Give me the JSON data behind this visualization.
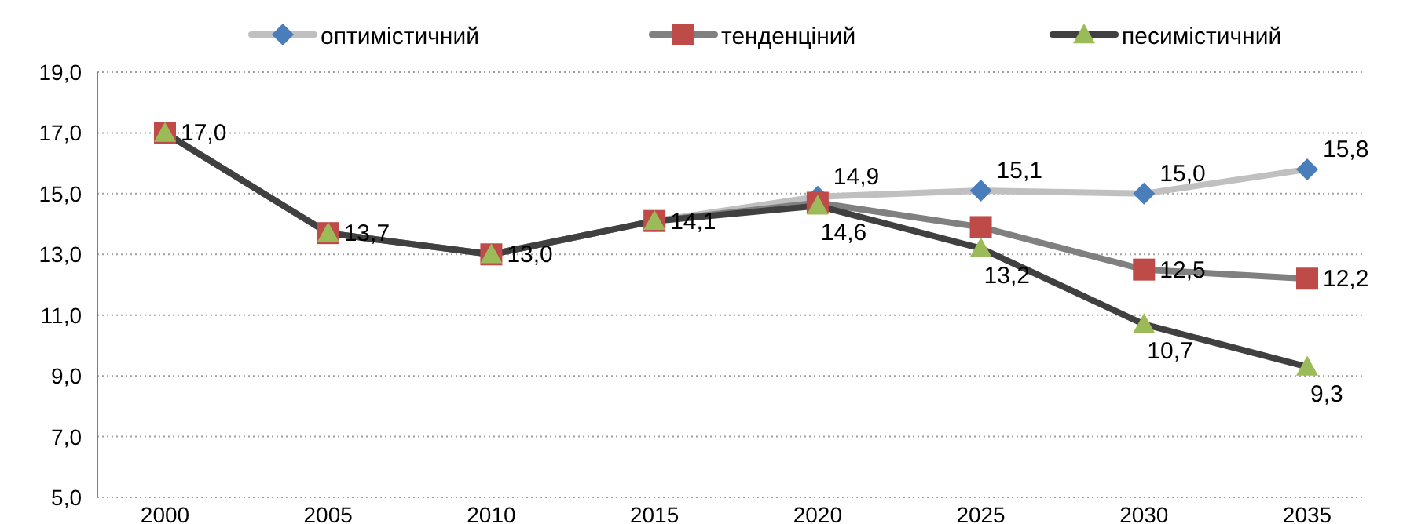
{
  "chart_data": {
    "type": "line",
    "categories": [
      "2000",
      "2005",
      "2010",
      "2015",
      "2020",
      "2025",
      "2030",
      "2035"
    ],
    "series": [
      {
        "name": "оптимістичний",
        "color": "#c0c0c0",
        "colors": [
          "#4a7ebb",
          "#4a7ebb",
          "#4a7ebb",
          "#4a7ebb",
          "#4a7ebb",
          "#4a7ebb",
          "#4a7ebb",
          "#4a7ebb"
        ],
        "marker": "diamond",
        "values": [
          17.0,
          13.7,
          13.0,
          14.1,
          14.9,
          15.1,
          15.0,
          15.8
        ],
        "value_labels": [
          null,
          null,
          null,
          null,
          "14,9",
          "15,1",
          "15,0",
          "15,8"
        ]
      },
      {
        "name": "тенденціний",
        "color": "#808080",
        "colors": [
          "#be4b48",
          "#be4b48",
          "#be4b48",
          "#be4b48",
          "#be4b48",
          "#be4b48",
          "#be4b48",
          "#be4b48"
        ],
        "marker": "square",
        "values": [
          17.0,
          13.7,
          13.0,
          14.1,
          14.7,
          13.9,
          12.5,
          12.2
        ],
        "value_labels": [
          null,
          null,
          null,
          null,
          null,
          null,
          "12,5",
          "12,2"
        ]
      },
      {
        "name": "песимістичний",
        "color": "#404040",
        "colors": [
          "#9bbb59",
          "#9bbb59",
          "#9bbb59",
          "#9bbb59",
          "#9bbb59",
          "#9bbb59",
          "#9bbb59",
          "#9bbb59"
        ],
        "marker": "triangle",
        "values": [
          17.0,
          13.7,
          13.0,
          14.1,
          14.6,
          13.2,
          10.7,
          9.3
        ],
        "value_labels": [
          "17,0",
          "13,7",
          "13,0",
          "14,1",
          "14,6",
          "13,2",
          "10,7",
          "9,3"
        ]
      }
    ],
    "ylim": [
      5,
      19
    ],
    "yticks": [
      {
        "value": 5,
        "label": "5,0"
      },
      {
        "value": 7,
        "label": "7,0"
      },
      {
        "value": 9,
        "label": "9,0"
      },
      {
        "value": 11,
        "label": "11,0"
      },
      {
        "value": 13,
        "label": "13,0"
      },
      {
        "value": 15,
        "label": "15,0"
      },
      {
        "value": 17,
        "label": "17,0"
      },
      {
        "value": 19,
        "label": "19,0"
      }
    ],
    "grid": "y",
    "legend": "top",
    "line_style": "solid"
  }
}
